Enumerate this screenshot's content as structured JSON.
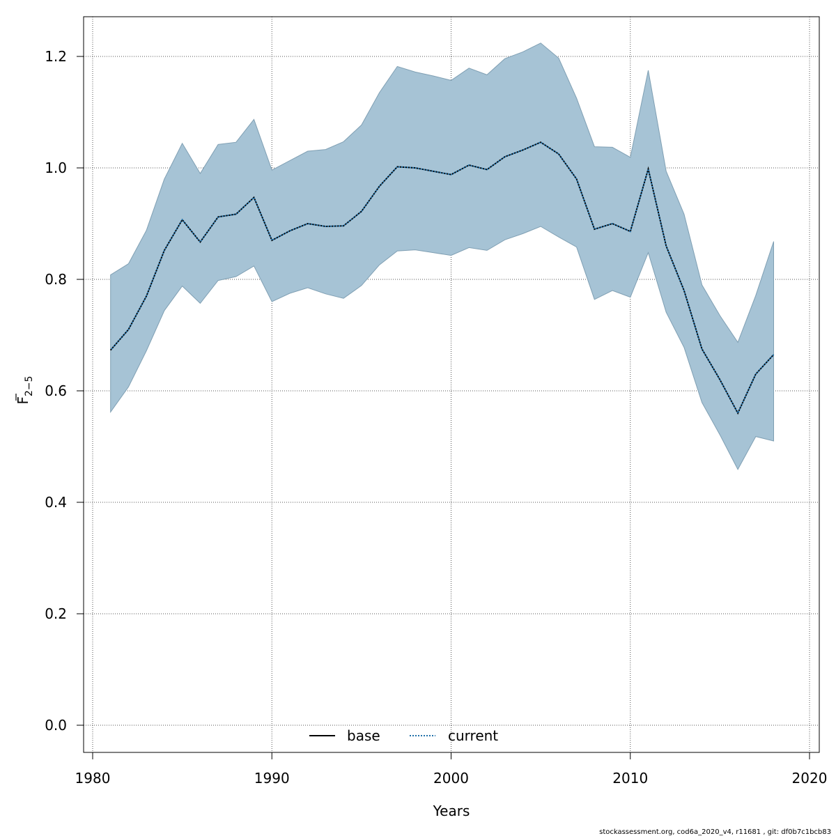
{
  "chart_data": {
    "type": "line",
    "xlabel": "Years",
    "ylabel_main": "F",
    "ylabel_sub": "2−5",
    "xlim": [
      1980,
      2020
    ],
    "ylim": [
      0.0,
      1.2
    ],
    "x_ticks": [
      "1980",
      "1990",
      "2000",
      "2010",
      "2020"
    ],
    "y_ticks": [
      "0.0",
      "0.2",
      "0.4",
      "0.6",
      "0.8",
      "1.0",
      "1.2"
    ],
    "grid": true,
    "legend_position": "bottom-center",
    "x": [
      1981,
      1982,
      1983,
      1984,
      1985,
      1986,
      1987,
      1988,
      1989,
      1990,
      1991,
      1992,
      1993,
      1994,
      1995,
      1996,
      1997,
      1998,
      1999,
      2000,
      2001,
      2002,
      2003,
      2004,
      2005,
      2006,
      2007,
      2008,
      2009,
      2010,
      2011,
      2012,
      2013,
      2014,
      2015,
      2016,
      2017,
      2018
    ],
    "series": [
      {
        "name": "base",
        "color": "#000000",
        "style": "solid",
        "values": [
          0.673,
          0.71,
          0.77,
          0.852,
          0.907,
          0.867,
          0.912,
          0.917,
          0.947,
          0.87,
          0.887,
          0.9,
          0.895,
          0.896,
          0.922,
          0.967,
          1.002,
          1.0,
          0.994,
          0.988,
          1.005,
          0.997,
          1.02,
          1.032,
          1.046,
          1.025,
          0.98,
          0.89,
          0.9,
          0.886,
          0.998,
          0.86,
          0.78,
          0.675,
          0.62,
          0.56,
          0.63,
          0.665
        ]
      },
      {
        "name": "current",
        "color": "#1f6fa8",
        "style": "dotted",
        "values": [
          0.673,
          0.71,
          0.77,
          0.852,
          0.907,
          0.867,
          0.912,
          0.917,
          0.947,
          0.87,
          0.887,
          0.9,
          0.895,
          0.896,
          0.922,
          0.967,
          1.002,
          1.0,
          0.994,
          0.988,
          1.005,
          0.997,
          1.02,
          1.032,
          1.046,
          1.025,
          0.98,
          0.89,
          0.9,
          0.886,
          0.998,
          0.86,
          0.78,
          0.675,
          0.62,
          0.56,
          0.63,
          0.665
        ]
      }
    ],
    "band": {
      "color": "#a6c3d5",
      "upper": [
        0.808,
        0.828,
        0.888,
        0.98,
        1.044,
        0.99,
        1.042,
        1.046,
        1.087,
        0.996,
        1.013,
        1.03,
        1.033,
        1.047,
        1.077,
        1.135,
        1.182,
        1.172,
        1.165,
        1.157,
        1.179,
        1.167,
        1.196,
        1.208,
        1.224,
        1.197,
        1.125,
        1.038,
        1.037,
        1.019,
        1.175,
        0.994,
        0.917,
        0.79,
        0.735,
        0.687,
        0.771,
        0.868
      ],
      "lower": [
        0.562,
        0.607,
        0.672,
        0.744,
        0.788,
        0.757,
        0.798,
        0.805,
        0.824,
        0.76,
        0.775,
        0.785,
        0.774,
        0.766,
        0.789,
        0.826,
        0.851,
        0.853,
        0.848,
        0.843,
        0.857,
        0.852,
        0.871,
        0.882,
        0.895,
        0.876,
        0.858,
        0.764,
        0.78,
        0.768,
        0.848,
        0.741,
        0.678,
        0.579,
        0.521,
        0.459,
        0.518,
        0.51
      ]
    }
  },
  "footnote": "stockassessment.org, cod6a_2020_v4, r11681 , git: df0b7c1bcb83"
}
